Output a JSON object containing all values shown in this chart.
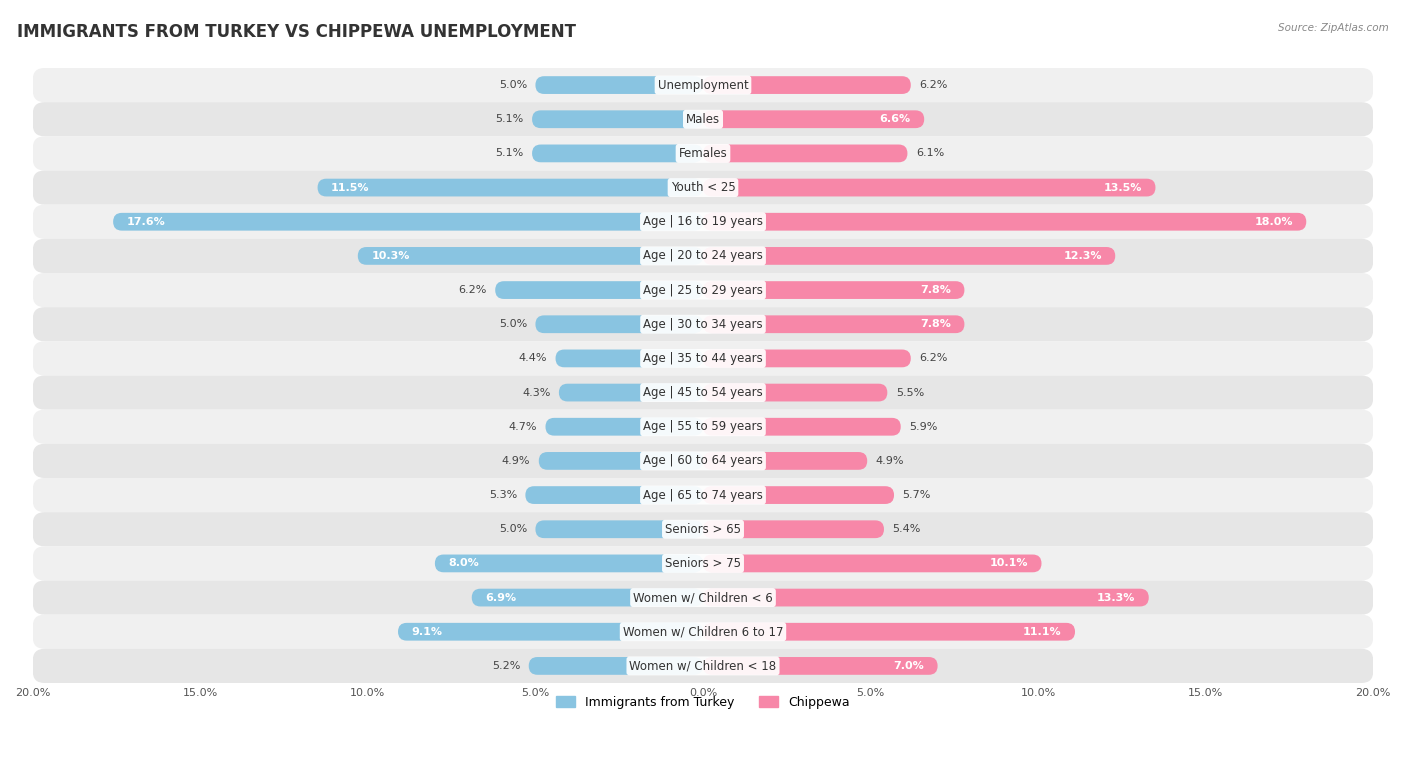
{
  "title": "IMMIGRANTS FROM TURKEY VS CHIPPEWA UNEMPLOYMENT",
  "source": "Source: ZipAtlas.com",
  "categories": [
    "Unemployment",
    "Males",
    "Females",
    "Youth < 25",
    "Age | 16 to 19 years",
    "Age | 20 to 24 years",
    "Age | 25 to 29 years",
    "Age | 30 to 34 years",
    "Age | 35 to 44 years",
    "Age | 45 to 54 years",
    "Age | 55 to 59 years",
    "Age | 60 to 64 years",
    "Age | 65 to 74 years",
    "Seniors > 65",
    "Seniors > 75",
    "Women w/ Children < 6",
    "Women w/ Children 6 to 17",
    "Women w/ Children < 18"
  ],
  "turkey_values": [
    5.0,
    5.1,
    5.1,
    11.5,
    17.6,
    10.3,
    6.2,
    5.0,
    4.4,
    4.3,
    4.7,
    4.9,
    5.3,
    5.0,
    8.0,
    6.9,
    9.1,
    5.2
  ],
  "chippewa_values": [
    6.2,
    6.6,
    6.1,
    13.5,
    18.0,
    12.3,
    7.8,
    7.8,
    6.2,
    5.5,
    5.9,
    4.9,
    5.7,
    5.4,
    10.1,
    13.3,
    11.1,
    7.0
  ],
  "turkey_color": "#89C4E1",
  "chippewa_color": "#F787A8",
  "row_bg_even": "#F0F0F0",
  "row_bg_odd": "#E6E6E6",
  "max_value": 20.0,
  "legend_turkey": "Immigrants from Turkey",
  "legend_chippewa": "Chippewa",
  "title_fontsize": 12,
  "label_fontsize": 8.5,
  "value_fontsize": 8.0,
  "inside_threshold": 6.5
}
